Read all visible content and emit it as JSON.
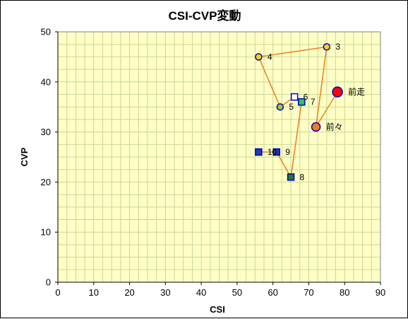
{
  "chart_data": {
    "type": "scatter",
    "title": "CSI-CVP変動",
    "xlabel": "CSI",
    "ylabel": "CVP",
    "xlim": [
      0,
      90
    ],
    "ylim": [
      0,
      50
    ],
    "x_ticks": [
      0,
      10,
      20,
      30,
      40,
      50,
      60,
      70,
      80,
      90
    ],
    "y_ticks": [
      0,
      10,
      20,
      30,
      40,
      50
    ],
    "x_minor_step": 2.5,
    "y_minor_step": 2.5,
    "grid": true,
    "plot_background": "#ffffc6",
    "grid_color": "#c8d894",
    "line_color": "#f07d1e",
    "path_order": [
      "前走",
      "前々",
      "3",
      "4",
      "5",
      "6",
      "7",
      "8",
      "9",
      "10"
    ],
    "points": [
      {
        "label": "前走",
        "x": 78,
        "y": 38,
        "shape": "circle",
        "fill": "#ff0000",
        "stroke": "#0000cc",
        "size": 7
      },
      {
        "label": "前々",
        "x": 72,
        "y": 31,
        "shape": "circle",
        "fill": "#f07d1e",
        "stroke": "#0000cc",
        "size": 6
      },
      {
        "label": "3",
        "x": 75,
        "y": 47,
        "shape": "circle",
        "fill": "#ffd400",
        "stroke": "#0000cc",
        "size": 4.5
      },
      {
        "label": "4",
        "x": 56,
        "y": 45,
        "shape": "circle",
        "fill": "#ffd400",
        "stroke": "#0000cc",
        "size": 4.5
      },
      {
        "label": "5",
        "x": 62,
        "y": 35,
        "shape": "circle",
        "fill": "#9acd32",
        "stroke": "#0000cc",
        "size": 4.5
      },
      {
        "label": "6",
        "x": 66,
        "y": 37,
        "shape": "square",
        "fill": "#ffffff",
        "stroke": "#0000cc",
        "size": 4.5
      },
      {
        "label": "7",
        "x": 68,
        "y": 36,
        "shape": "square",
        "fill": "#22cc44",
        "stroke": "#0000cc",
        "size": 4.5
      },
      {
        "label": "8",
        "x": 65,
        "y": 21,
        "shape": "square",
        "fill": "#1f7a2e",
        "stroke": "#0000cc",
        "size": 4.5
      },
      {
        "label": "9",
        "x": 61,
        "y": 26,
        "shape": "square",
        "fill": "#1f3fa0",
        "stroke": "#0000cc",
        "size": 4.5
      },
      {
        "label": "10",
        "x": 56,
        "y": 26,
        "shape": "square",
        "fill": "#1f3fa0",
        "stroke": "#0000cc",
        "size": 4.5
      }
    ]
  }
}
